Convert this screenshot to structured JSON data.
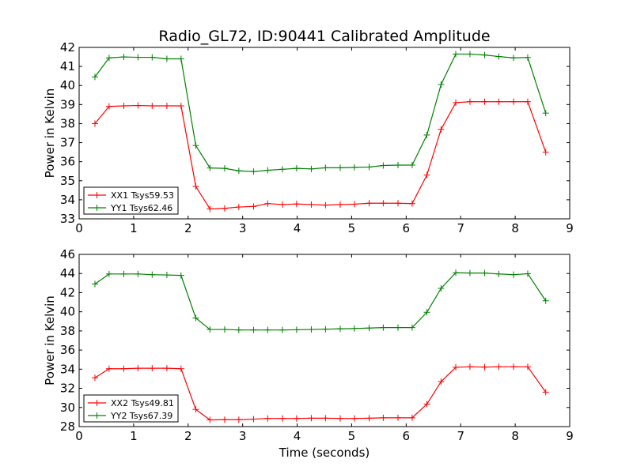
{
  "title": "Radio_GL72, ID:90441 Calibrated Amplitude",
  "xlabel": "Time (seconds)",
  "colors": {
    "red": "#ff0000",
    "green": "#008000"
  },
  "chart_data": [
    {
      "type": "line",
      "title": "Radio_GL72, ID:90441 Calibrated Amplitude",
      "xlabel": "",
      "ylabel": "Power in Kelvin",
      "xlim": [
        0,
        9
      ],
      "ylim": [
        33,
        42
      ],
      "xticks": [
        0,
        1,
        2,
        3,
        4,
        5,
        6,
        7,
        8,
        9
      ],
      "yticks": [
        33,
        34,
        35,
        36,
        37,
        38,
        39,
        40,
        41,
        42
      ],
      "grid": false,
      "legend_position": "bottom-left",
      "x": [
        0.29,
        0.55,
        0.82,
        1.08,
        1.34,
        1.61,
        1.87,
        2.14,
        2.4,
        2.67,
        2.93,
        3.2,
        3.46,
        3.73,
        3.99,
        4.26,
        4.52,
        4.79,
        5.05,
        5.32,
        5.58,
        5.85,
        6.11,
        6.38,
        6.64,
        6.91,
        7.17,
        7.44,
        7.7,
        7.97,
        8.23,
        8.56
      ],
      "series": [
        {
          "name": "XX1 Tsys59.53",
          "color": "red",
          "values": [
            38.0,
            38.9,
            38.93,
            38.95,
            38.93,
            38.93,
            38.93,
            34.7,
            33.52,
            33.55,
            33.62,
            33.65,
            33.8,
            33.75,
            33.78,
            33.75,
            33.72,
            33.75,
            33.77,
            33.82,
            33.82,
            33.82,
            33.8,
            35.3,
            37.7,
            39.1,
            39.15,
            39.15,
            39.15,
            39.15,
            39.15,
            36.5
          ]
        },
        {
          "name": "YY1 Tsys62.46",
          "color": "green",
          "values": [
            40.45,
            41.45,
            41.5,
            41.48,
            41.48,
            41.4,
            41.4,
            36.85,
            35.67,
            35.65,
            35.52,
            35.48,
            35.55,
            35.6,
            35.65,
            35.62,
            35.68,
            35.68,
            35.7,
            35.72,
            35.8,
            35.82,
            35.82,
            37.4,
            40.05,
            41.65,
            41.65,
            41.6,
            41.52,
            41.45,
            41.47,
            38.55
          ]
        }
      ]
    },
    {
      "type": "line",
      "title": "",
      "xlabel": "Time (seconds)",
      "ylabel": "Power in Kelvin",
      "xlim": [
        0,
        9
      ],
      "ylim": [
        28,
        46
      ],
      "xticks": [
        0,
        1,
        2,
        3,
        4,
        5,
        6,
        7,
        8,
        9
      ],
      "yticks": [
        28,
        30,
        32,
        34,
        36,
        38,
        40,
        42,
        44,
        46
      ],
      "grid": false,
      "legend_position": "bottom-left",
      "x": [
        0.29,
        0.55,
        0.82,
        1.08,
        1.34,
        1.61,
        1.87,
        2.14,
        2.4,
        2.67,
        2.93,
        3.2,
        3.46,
        3.73,
        3.99,
        4.26,
        4.52,
        4.79,
        5.05,
        5.32,
        5.58,
        5.85,
        6.11,
        6.38,
        6.64,
        6.91,
        7.17,
        7.44,
        7.7,
        7.97,
        8.23,
        8.56
      ],
      "series": [
        {
          "name": "XX2 Tsys49.81",
          "color": "red",
          "values": [
            33.1,
            34.05,
            34.05,
            34.1,
            34.1,
            34.1,
            34.05,
            29.8,
            28.7,
            28.72,
            28.72,
            28.78,
            28.85,
            28.85,
            28.85,
            28.88,
            28.88,
            28.85,
            28.85,
            28.88,
            28.92,
            28.92,
            28.92,
            30.35,
            32.7,
            34.2,
            34.25,
            34.22,
            34.25,
            34.25,
            34.25,
            31.6
          ]
        },
        {
          "name": "YY2 Tsys67.39",
          "color": "green",
          "values": [
            42.9,
            43.95,
            43.95,
            43.95,
            43.88,
            43.85,
            43.8,
            39.35,
            38.15,
            38.15,
            38.1,
            38.1,
            38.1,
            38.1,
            38.12,
            38.15,
            38.18,
            38.22,
            38.25,
            38.3,
            38.35,
            38.35,
            38.35,
            39.95,
            42.45,
            44.08,
            44.05,
            44.05,
            43.95,
            43.88,
            43.98,
            41.15
          ]
        }
      ]
    }
  ]
}
